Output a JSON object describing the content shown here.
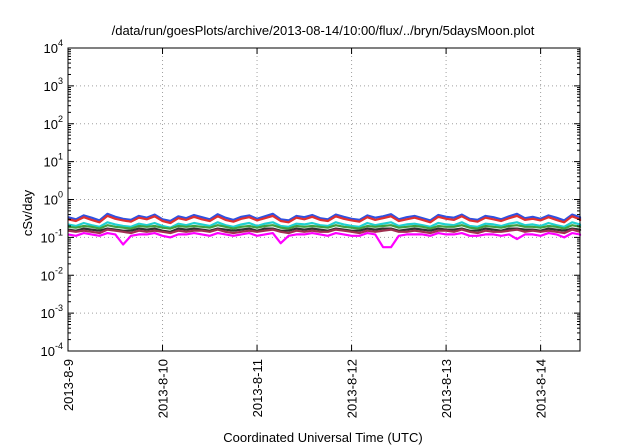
{
  "chart_data": {
    "type": "line",
    "title": "/data/run/goesPlots/archive/2013-08-14/10:00/flux/../bryn/5daysMoon.plot",
    "xlabel": "Coordinated Universal Time (UTC)",
    "ylabel": "cSv/day",
    "yscale": "log",
    "ylim": [
      0.0001,
      10000
    ],
    "y_ticks": [
      {
        "value": 0.0001,
        "mantissa": "10",
        "exponent": "-4"
      },
      {
        "value": 0.001,
        "mantissa": "10",
        "exponent": "-3"
      },
      {
        "value": 0.01,
        "mantissa": "10",
        "exponent": "-2"
      },
      {
        "value": 0.1,
        "mantissa": "10",
        "exponent": "-1"
      },
      {
        "value": 1,
        "mantissa": "10",
        "exponent": "0"
      },
      {
        "value": 10,
        "mantissa": "10",
        "exponent": "1"
      },
      {
        "value": 100,
        "mantissa": "10",
        "exponent": "2"
      },
      {
        "value": 1000,
        "mantissa": "10",
        "exponent": "3"
      },
      {
        "value": 10000,
        "mantissa": "10",
        "exponent": "4"
      }
    ],
    "x_range": [
      "2013-08-09T00:00",
      "2013-08-14T10:00"
    ],
    "x_ticks": [
      "2013-8-9",
      "2013-8-10",
      "2013-8-11",
      "2013-8-12",
      "2013-8-13",
      "2013-8-14"
    ],
    "grid": true,
    "legend": "none",
    "series_time_step_hours": 2,
    "series": [
      {
        "color": "#3050e0",
        "base": 0.3,
        "values": [
          0.34,
          0.3,
          0.38,
          0.33,
          0.28,
          0.42,
          0.35,
          0.31,
          0.29,
          0.37,
          0.33,
          0.4,
          0.3,
          0.27,
          0.36,
          0.32,
          0.39,
          0.34,
          0.3,
          0.41,
          0.33,
          0.29,
          0.35,
          0.38,
          0.31,
          0.36,
          0.42,
          0.3,
          0.28,
          0.37,
          0.34,
          0.39,
          0.32,
          0.3,
          0.4,
          0.35,
          0.31,
          0.29,
          0.38,
          0.33,
          0.36,
          0.41,
          0.3,
          0.34,
          0.37,
          0.32,
          0.28,
          0.39,
          0.35,
          0.33,
          0.4,
          0.31,
          0.29,
          0.37,
          0.34,
          0.3,
          0.36,
          0.42,
          0.32,
          0.35,
          0.31,
          0.38,
          0.33,
          0.28,
          0.4,
          0.34,
          0.3
        ]
      },
      {
        "color": "#e03030",
        "base": 0.27,
        "values": [
          0.3,
          0.27,
          0.34,
          0.29,
          0.25,
          0.37,
          0.31,
          0.28,
          0.26,
          0.33,
          0.3,
          0.36,
          0.27,
          0.24,
          0.32,
          0.29,
          0.35,
          0.3,
          0.27,
          0.36,
          0.29,
          0.26,
          0.31,
          0.34,
          0.28,
          0.32,
          0.37,
          0.27,
          0.25,
          0.33,
          0.3,
          0.35,
          0.29,
          0.27,
          0.36,
          0.31,
          0.28,
          0.26,
          0.34,
          0.29,
          0.32,
          0.36,
          0.27,
          0.3,
          0.33,
          0.29,
          0.25,
          0.35,
          0.31,
          0.29,
          0.36,
          0.28,
          0.26,
          0.33,
          0.3,
          0.27,
          0.32,
          0.37,
          0.29,
          0.31,
          0.28,
          0.34,
          0.29,
          0.25,
          0.36,
          0.3,
          0.27
        ]
      },
      {
        "color": "#20d0d0",
        "base": 0.21,
        "values": [
          0.22,
          0.2,
          0.24,
          0.21,
          0.19,
          0.25,
          0.22,
          0.2,
          0.19,
          0.23,
          0.21,
          0.24,
          0.2,
          0.18,
          0.23,
          0.21,
          0.24,
          0.22,
          0.2,
          0.25,
          0.21,
          0.19,
          0.22,
          0.24,
          0.2,
          0.23,
          0.25,
          0.2,
          0.19,
          0.23,
          0.22,
          0.24,
          0.21,
          0.2,
          0.25,
          0.22,
          0.2,
          0.19,
          0.24,
          0.21,
          0.23,
          0.25,
          0.2,
          0.22,
          0.23,
          0.21,
          0.19,
          0.24,
          0.22,
          0.21,
          0.25,
          0.2,
          0.19,
          0.23,
          0.22,
          0.2,
          0.23,
          0.25,
          0.21,
          0.22,
          0.2,
          0.24,
          0.21,
          0.19,
          0.25,
          0.22,
          0.2
        ]
      },
      {
        "color": "#40a040",
        "base": 0.185,
        "values": [
          0.19,
          0.18,
          0.2,
          0.19,
          0.17,
          0.21,
          0.19,
          0.18,
          0.17,
          0.2,
          0.19,
          0.2,
          0.18,
          0.17,
          0.2,
          0.19,
          0.2,
          0.19,
          0.18,
          0.21,
          0.19,
          0.17,
          0.19,
          0.2,
          0.18,
          0.2,
          0.21,
          0.18,
          0.17,
          0.2,
          0.19,
          0.2,
          0.19,
          0.18,
          0.21,
          0.19,
          0.18,
          0.17,
          0.2,
          0.19,
          0.2,
          0.21,
          0.18,
          0.19,
          0.2,
          0.19,
          0.17,
          0.2,
          0.19,
          0.19,
          0.21,
          0.18,
          0.17,
          0.2,
          0.19,
          0.18,
          0.2,
          0.21,
          0.19,
          0.19,
          0.18,
          0.2,
          0.19,
          0.17,
          0.21,
          0.19,
          0.18
        ]
      },
      {
        "color": "#303030",
        "base": 0.16,
        "values": [
          0.16,
          0.15,
          0.17,
          0.16,
          0.15,
          0.17,
          0.16,
          0.15,
          0.15,
          0.17,
          0.16,
          0.17,
          0.15,
          0.14,
          0.17,
          0.16,
          0.17,
          0.16,
          0.15,
          0.17,
          0.16,
          0.15,
          0.16,
          0.17,
          0.15,
          0.17,
          0.17,
          0.15,
          0.15,
          0.17,
          0.16,
          0.17,
          0.16,
          0.15,
          0.17,
          0.16,
          0.15,
          0.15,
          0.17,
          0.16,
          0.17,
          0.17,
          0.15,
          0.16,
          0.17,
          0.16,
          0.15,
          0.17,
          0.16,
          0.16,
          0.17,
          0.15,
          0.15,
          0.17,
          0.16,
          0.15,
          0.17,
          0.17,
          0.16,
          0.16,
          0.15,
          0.17,
          0.16,
          0.15,
          0.17,
          0.16,
          0.15
        ]
      },
      {
        "color": "#a03050",
        "base": 0.145,
        "values": [
          0.15,
          0.14,
          0.15,
          0.14,
          0.13,
          0.16,
          0.15,
          0.14,
          0.13,
          0.15,
          0.14,
          0.15,
          0.14,
          0.13,
          0.15,
          0.14,
          0.15,
          0.15,
          0.14,
          0.16,
          0.14,
          0.13,
          0.14,
          0.15,
          0.14,
          0.15,
          0.16,
          0.14,
          0.13,
          0.15,
          0.14,
          0.15,
          0.14,
          0.14,
          0.16,
          0.15,
          0.14,
          0.13,
          0.15,
          0.14,
          0.15,
          0.16,
          0.14,
          0.14,
          0.15,
          0.14,
          0.13,
          0.15,
          0.15,
          0.14,
          0.16,
          0.14,
          0.13,
          0.15,
          0.14,
          0.14,
          0.15,
          0.16,
          0.14,
          0.15,
          0.14,
          0.15,
          0.14,
          0.13,
          0.16,
          0.14,
          0.14
        ]
      },
      {
        "color": "#ff00ff",
        "base": 0.12,
        "values": [
          0.12,
          0.11,
          0.13,
          0.12,
          0.11,
          0.13,
          0.12,
          0.065,
          0.11,
          0.12,
          0.12,
          0.13,
          0.11,
          0.1,
          0.12,
          0.12,
          0.13,
          0.12,
          0.11,
          0.13,
          0.12,
          0.11,
          0.12,
          0.13,
          0.11,
          0.12,
          0.13,
          0.07,
          0.11,
          0.12,
          0.12,
          0.13,
          0.12,
          0.11,
          0.13,
          0.12,
          0.11,
          0.11,
          0.13,
          0.12,
          0.055,
          0.055,
          0.11,
          0.12,
          0.12,
          0.12,
          0.11,
          0.13,
          0.12,
          0.12,
          0.13,
          0.11,
          0.11,
          0.12,
          0.12,
          0.11,
          0.12,
          0.09,
          0.12,
          0.12,
          0.11,
          0.13,
          0.12,
          0.1,
          0.13,
          0.12,
          0.11
        ]
      }
    ]
  }
}
